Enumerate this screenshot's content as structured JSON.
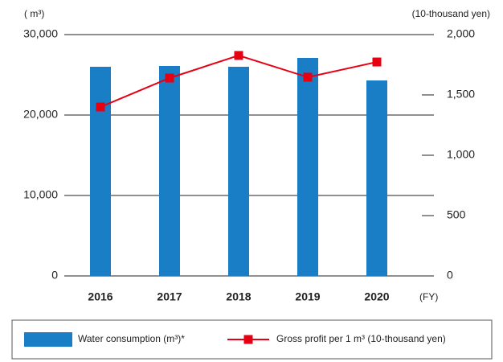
{
  "chart_data": {
    "type": "bar_line",
    "y_label": "( m³)",
    "y2_label": "(10-thousand yen)",
    "x_label": "(FY)",
    "categories": [
      "2016",
      "2017",
      "2018",
      "2019",
      "2020"
    ],
    "series": [
      {
        "name": "Water consumption (m³)*",
        "type": "bar",
        "color": "#1a7ec6",
        "values": [
          26000,
          26100,
          26000,
          27100,
          24300
        ]
      },
      {
        "name": "Gross profit per 1 m³ (10-thousand yen)",
        "type": "line",
        "axis": "y2",
        "color": "#e60012",
        "values": [
          1400,
          1640,
          1827,
          1647,
          1773
        ]
      }
    ],
    "ylim": [
      0,
      30000
    ],
    "yticks": [
      0,
      {
        "value": 10000,
        "label": "10,000"
      },
      {
        "value": 20000,
        "label": "20,000"
      },
      {
        "value": 30000,
        "label": "30,000"
      }
    ],
    "y2lim": [
      0,
      2000
    ],
    "y2ticks": [
      0,
      500,
      {
        "value": 1000,
        "label": "1,000"
      },
      {
        "value": 1500,
        "label": "1,500"
      },
      {
        "value": 2000,
        "label": "2,000"
      }
    ],
    "grid": true,
    "legend": "bottom"
  }
}
